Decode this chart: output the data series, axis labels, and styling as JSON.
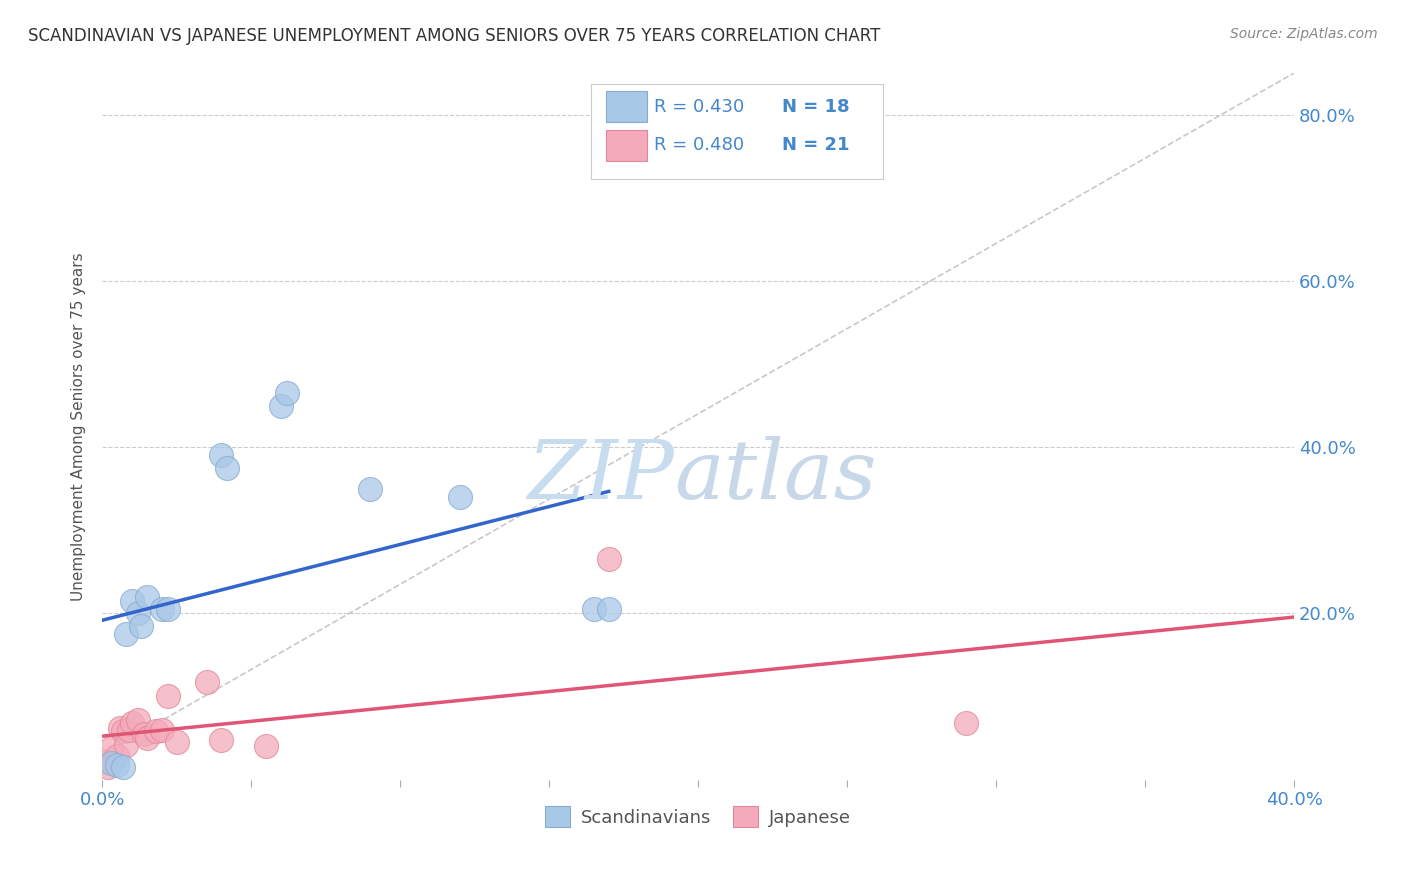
{
  "title": "SCANDINAVIAN VS JAPANESE UNEMPLOYMENT AMONG SENIORS OVER 75 YEARS CORRELATION CHART",
  "source": "Source: ZipAtlas.com",
  "ylabel": "Unemployment Among Seniors over 75 years",
  "xlim": [
    0.0,
    0.4
  ],
  "ylim": [
    0.0,
    0.85
  ],
  "scandinavian_x": [
    0.003,
    0.005,
    0.007,
    0.008,
    0.01,
    0.012,
    0.013,
    0.015,
    0.02,
    0.022,
    0.04,
    0.042,
    0.06,
    0.062,
    0.09,
    0.12,
    0.165,
    0.17
  ],
  "scandinavian_y": [
    0.02,
    0.018,
    0.015,
    0.175,
    0.215,
    0.2,
    0.185,
    0.22,
    0.205,
    0.205,
    0.39,
    0.375,
    0.45,
    0.465,
    0.35,
    0.34,
    0.205,
    0.205
  ],
  "japanese_x": [
    0.0,
    0.002,
    0.003,
    0.005,
    0.006,
    0.007,
    0.008,
    0.009,
    0.01,
    0.012,
    0.014,
    0.015,
    0.018,
    0.02,
    0.022,
    0.025,
    0.035,
    0.04,
    0.055,
    0.17,
    0.29
  ],
  "japanese_y": [
    0.022,
    0.015,
    0.038,
    0.028,
    0.062,
    0.058,
    0.042,
    0.06,
    0.068,
    0.072,
    0.055,
    0.05,
    0.058,
    0.06,
    0.1,
    0.045,
    0.118,
    0.048,
    0.04,
    0.265,
    0.068
  ],
  "scand_line_x": [
    0.0,
    0.17
  ],
  "scand_R": 0.43,
  "scand_N": 18,
  "japan_R": 0.48,
  "japan_N": 21,
  "scand_color": "#A8C8E8",
  "japan_color": "#F4AABB",
  "scand_edge_color": "#88AACC",
  "japan_edge_color": "#E08898",
  "scand_line_color": "#3366CC",
  "japan_line_color": "#E05575",
  "diagonal_color": "#C8C8C8",
  "watermark_zip_color": "#C8DCF0",
  "watermark_atlas_color": "#C8D8E8",
  "background_color": "#FFFFFF",
  "grid_color": "#CCCCCC",
  "tick_label_color": "#4488CC",
  "title_color": "#333333",
  "source_color": "#888888",
  "ylabel_color": "#555555"
}
